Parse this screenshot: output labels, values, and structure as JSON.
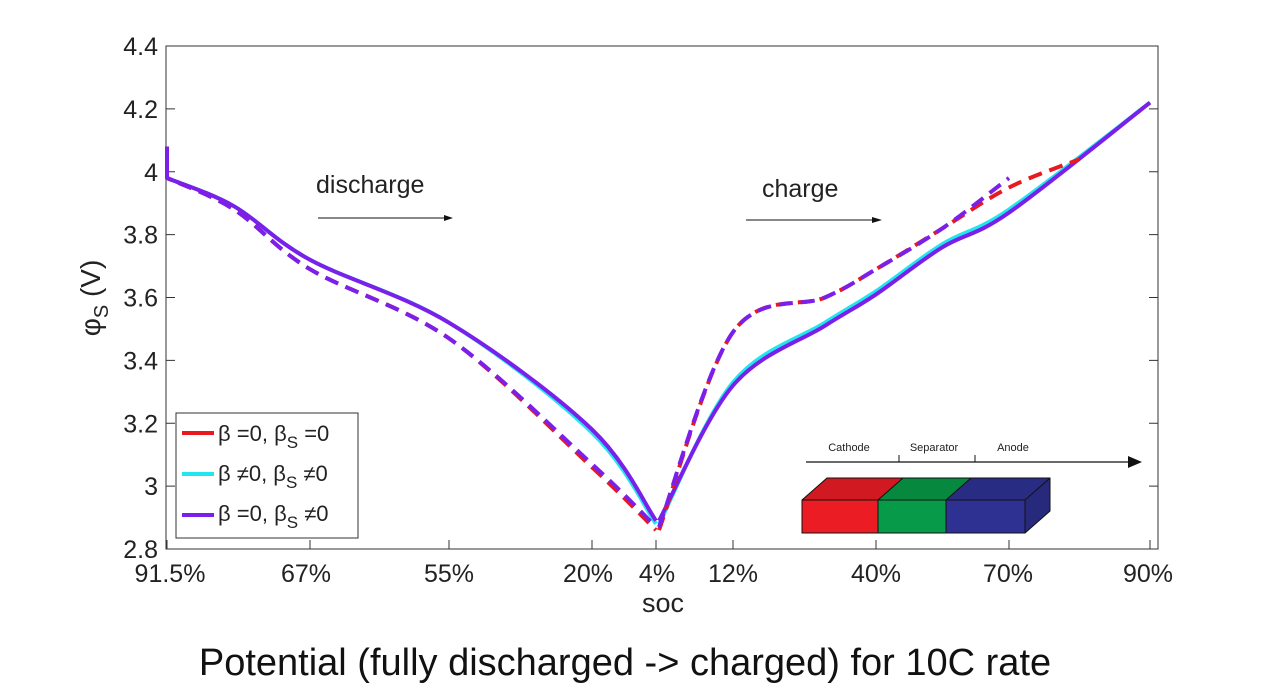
{
  "caption": "Potential (fully discharged -> charged) for 10C rate",
  "chart_data": {
    "type": "line",
    "title": "",
    "xlabel": "soc",
    "ylabel_base": "φ",
    "ylabel_sub": "S",
    "ylabel_unit": " (V)",
    "ylim": [
      2.8,
      4.4
    ],
    "yticks": [
      "2.8",
      "3",
      "3.2",
      "3.4",
      "3.6",
      "3.8",
      "4",
      "4.2",
      "4.4"
    ],
    "x_tick_labels": [
      "91.5%",
      "67%",
      "55%",
      "20%",
      "4%",
      "12%",
      "40%",
      "70%",
      "90%"
    ],
    "grid": false,
    "legend_position": "bottom-left",
    "annotations": [
      "discharge",
      "charge"
    ],
    "series": [
      {
        "name": "β =0, β_S =0",
        "label_parts": [
          "β =0, β",
          "S",
          " =0"
        ],
        "color": "#e8191f",
        "dash": "dashed",
        "discharge": [
          [
            91.5,
            4.08
          ],
          [
            91.5,
            3.98
          ],
          [
            80,
            3.88
          ],
          [
            67,
            3.69
          ],
          [
            55,
            3.47
          ],
          [
            20,
            3.06
          ],
          [
            4,
            2.86
          ]
        ],
        "charge": [
          [
            4,
            2.86
          ],
          [
            12,
            3.49
          ],
          [
            30,
            3.6
          ],
          [
            40,
            3.69
          ],
          [
            55,
            3.82
          ],
          [
            70,
            3.95
          ],
          [
            80,
            4.04
          ]
        ]
      },
      {
        "name": "β ≠0, β_S ≠0",
        "label_parts": [
          "β ≠0, β",
          "S",
          " ≠0"
        ],
        "color": "#22e6ee",
        "dash": "solid",
        "discharge": [
          [
            91.5,
            4.07
          ],
          [
            91.5,
            3.98
          ],
          [
            80,
            3.89
          ],
          [
            67,
            3.72
          ],
          [
            55,
            3.52
          ],
          [
            20,
            3.17
          ],
          [
            4,
            2.88
          ]
        ],
        "charge": [
          [
            4,
            2.88
          ],
          [
            12,
            3.33
          ],
          [
            30,
            3.52
          ],
          [
            40,
            3.62
          ],
          [
            55,
            3.77
          ],
          [
            70,
            3.88
          ],
          [
            90,
            4.22
          ]
        ]
      },
      {
        "name": "β =0, β_S ≠0",
        "label_parts": [
          "β =0, β",
          "S",
          " ≠0"
        ],
        "color": "#7b1fea",
        "dash": "solid",
        "discharge": [
          [
            91.5,
            4.08
          ],
          [
            91.5,
            3.98
          ],
          [
            80,
            3.89
          ],
          [
            67,
            3.72
          ],
          [
            55,
            3.52
          ],
          [
            20,
            3.18
          ],
          [
            4,
            2.89
          ]
        ],
        "charge": [
          [
            4,
            2.89
          ],
          [
            12,
            3.32
          ],
          [
            30,
            3.51
          ],
          [
            40,
            3.61
          ],
          [
            55,
            3.76
          ],
          [
            70,
            3.87
          ],
          [
            90,
            4.22
          ]
        ]
      },
      {
        "name": "β =0, β_S ≠0 (dashed)",
        "label_parts": [],
        "color": "#7b1fea",
        "dash": "dashed",
        "discharge": [
          [
            91.5,
            4.08
          ],
          [
            91.5,
            3.98
          ],
          [
            80,
            3.88
          ],
          [
            67,
            3.69
          ],
          [
            55,
            3.47
          ],
          [
            20,
            3.07
          ],
          [
            4,
            2.87
          ]
        ],
        "charge": [
          [
            4,
            2.87
          ],
          [
            12,
            3.49
          ],
          [
            30,
            3.6
          ],
          [
            40,
            3.69
          ],
          [
            55,
            3.82
          ],
          [
            70,
            3.98
          ]
        ]
      }
    ]
  },
  "inset": {
    "labels": [
      "Cathode",
      "Separator",
      "Anode"
    ],
    "colors": [
      "#ec1c24",
      "#079a48",
      "#2e3192"
    ]
  }
}
